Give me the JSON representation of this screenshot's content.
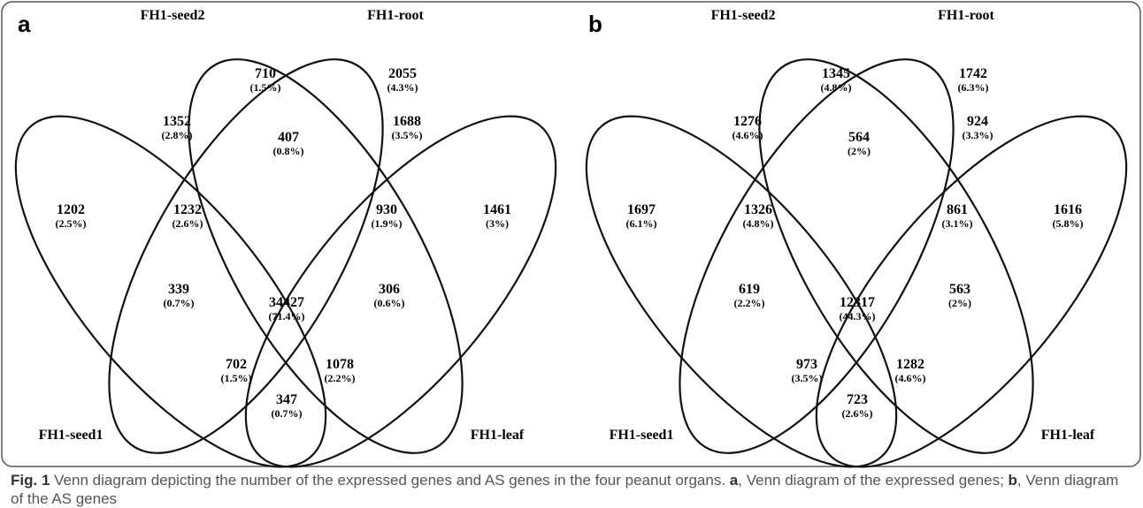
{
  "figure": {
    "panels": [
      {
        "letter": "a",
        "sets": [
          "FH1-seed1",
          "FH1-seed2",
          "FH1-root",
          "FH1-leaf"
        ],
        "regions": [
          {
            "count": 710,
            "percent": "(1.5%)"
          },
          {
            "count": 2055,
            "percent": "(4.3%)"
          },
          {
            "count": 1352,
            "percent": "(2.8%)"
          },
          {
            "count": 407,
            "percent": "(0.8%)"
          },
          {
            "count": 1688,
            "percent": "(3.5%)"
          },
          {
            "count": 1202,
            "percent": "(2.5%)"
          },
          {
            "count": 1232,
            "percent": "(2.6%)"
          },
          {
            "count": 930,
            "percent": "(1.9%)"
          },
          {
            "count": 1461,
            "percent": "(3%)"
          },
          {
            "count": 34427,
            "percent": "(71.4%)"
          },
          {
            "count": 339,
            "percent": "(0.7%)"
          },
          {
            "count": 306,
            "percent": "(0.6%)"
          },
          {
            "count": 702,
            "percent": "(1.5%)"
          },
          {
            "count": 1078,
            "percent": "(2.2%)"
          },
          {
            "count": 347,
            "percent": "(0.7%)"
          }
        ]
      },
      {
        "letter": "b",
        "sets": [
          "FH1-seed1",
          "FH1-seed2",
          "FH1-root",
          "FH1-leaf"
        ],
        "regions": [
          {
            "count": 1345,
            "percent": "(4.8%)"
          },
          {
            "count": 1742,
            "percent": "(6.3%)"
          },
          {
            "count": 1276,
            "percent": "(4.6%)"
          },
          {
            "count": 564,
            "percent": "(2%)"
          },
          {
            "count": 924,
            "percent": "(3.3%)"
          },
          {
            "count": 1697,
            "percent": "(6.1%)"
          },
          {
            "count": 1326,
            "percent": "(4.8%)"
          },
          {
            "count": 861,
            "percent": "(3.1%)"
          },
          {
            "count": 1616,
            "percent": "(5.8%)"
          },
          {
            "count": 12317,
            "percent": "(44.3%)"
          },
          {
            "count": 619,
            "percent": "(2.2%)"
          },
          {
            "count": 563,
            "percent": "(2%)"
          },
          {
            "count": 973,
            "percent": "(3.5%)"
          },
          {
            "count": 1282,
            "percent": "(4.6%)"
          },
          {
            "count": 723,
            "percent": "(2.6%)"
          }
        ]
      }
    ]
  },
  "caption": {
    "label": "Fig. 1",
    "title": "Venn diagram depicting the number of the expressed genes and AS genes in the four peanut organs.",
    "items": [
      {
        "letter": "a",
        "text": ", Venn diagram of the expressed genes;"
      },
      {
        "letter": "b",
        "text": ", Venn diagram of the AS genes"
      }
    ]
  }
}
